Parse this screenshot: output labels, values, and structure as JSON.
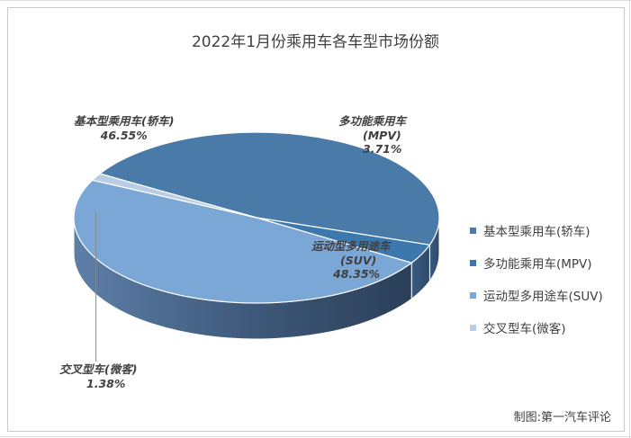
{
  "chart_data": {
    "type": "pie",
    "title": "2022年1月份乘用车各车型市场份额",
    "slices": [
      {
        "name": "基本型乘用车(轿车)",
        "value": 46.55,
        "value_label": "46.55%",
        "color": "#4a7aa8"
      },
      {
        "name": "多功能乘用车(MPV)",
        "value": 3.71,
        "value_label": "3.71%",
        "color": "#3c78ae"
      },
      {
        "name": "运动型多用途车(SUV)",
        "value": 48.35,
        "value_label": "48.35%",
        "color": "#7ba7d6"
      },
      {
        "name": "交叉型车(微客)",
        "value": 1.38,
        "value_label": "1.38%",
        "color": "#b9cde4"
      }
    ],
    "legend_position": "right",
    "style": "3d-pie"
  },
  "labels": {
    "sedan": {
      "line1": "基本型乘用车(轿车)",
      "line2": "46.55%"
    },
    "mpv": {
      "line1": "多功能乘用车",
      "line2": "(MPV)",
      "line3": "3.71%"
    },
    "suv": {
      "line1": "运动型多用途车",
      "line2": "(SUV)",
      "line3": "48.35%"
    },
    "micro": {
      "line1": "交叉型车(微客)",
      "line2": "1.38%"
    }
  },
  "credit": "制图:第一汽车评论"
}
